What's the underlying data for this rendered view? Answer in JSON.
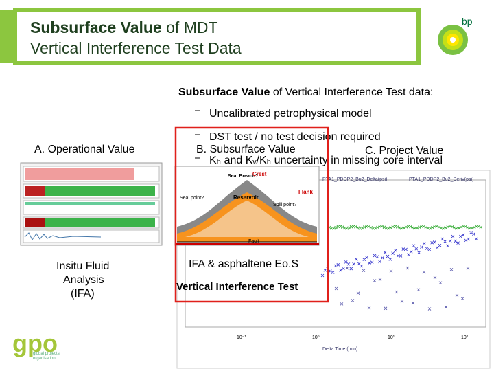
{
  "header": {
    "title_bold": "Subsurface Value",
    "title_rest": " of MDT",
    "title_line2": "Vertical Interference Test Data",
    "logo": "bp"
  },
  "summary": {
    "heading_bold": "Subsurface Value",
    "heading_rest": " of Vertical Interference Test data:",
    "bullets": [
      "Uncalibrated petrophysical model",
      "DST test / no test decision required",
      "Kₕ and Kᵥ/Kₕ uncertainty in missing core interval"
    ]
  },
  "sections": {
    "a": "A. Operational Value",
    "b": "B. Subsurface Value",
    "c": "C. Project Value"
  },
  "ifa": {
    "line1": "Insitu Fluid",
    "line2": "Analysis",
    "line3": "(IFA)"
  },
  "labels": {
    "eos": "IFA & asphaltene Eo.S",
    "vit": "Vertical Interference Test"
  },
  "diagram": {
    "seal_breach": "Seal Breach?",
    "crest": "Crest",
    "seal_point": "Seal point?",
    "spill_point": "Spill point?",
    "flank": "Flank",
    "reservoir": "Reservoir",
    "fault": "Fault"
  },
  "plot": {
    "legend": [
      "PTA1_PDDP2_Bu2_Delta(psi)",
      "PTA1_PDDP2_Bu2_Deriv(psi)"
    ],
    "x_label": "Delta Time (min)",
    "x_ticks": [
      "10⁻¹",
      "10⁰",
      "10¹",
      "10²"
    ]
  },
  "footer": {
    "logo": "gpo",
    "line1": "global projects",
    "line2": "organisation"
  }
}
